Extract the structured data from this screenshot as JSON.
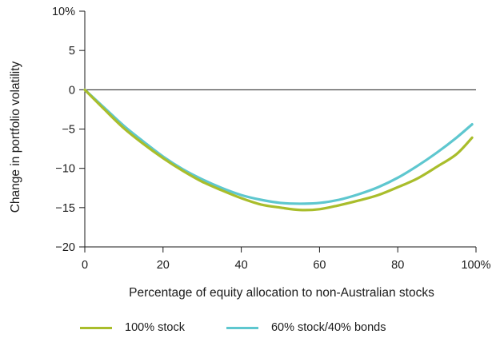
{
  "chart_data": {
    "type": "line",
    "xlabel": "Percentage of equity allocation to non-Australian stocks",
    "ylabel": "Change in portfolio volatility",
    "xlim": [
      0,
      100
    ],
    "ylim": [
      -20,
      10
    ],
    "x_ticks": [
      {
        "value": 0,
        "label": "0"
      },
      {
        "value": 20,
        "label": "20"
      },
      {
        "value": 40,
        "label": "40"
      },
      {
        "value": 60,
        "label": "60"
      },
      {
        "value": 80,
        "label": "80"
      },
      {
        "value": 100,
        "label": "100%"
      }
    ],
    "y_ticks": [
      {
        "value": 10,
        "label": "10%"
      },
      {
        "value": 5,
        "label": "5"
      },
      {
        "value": 0,
        "label": "0"
      },
      {
        "value": -5,
        "label": "−5"
      },
      {
        "value": -10,
        "label": "−10"
      },
      {
        "value": -15,
        "label": "−15"
      },
      {
        "value": -20,
        "label": "−20"
      }
    ],
    "zero_line": true,
    "legend_position": "bottom",
    "series": [
      {
        "name": "100% stock",
        "color": "#a9bd2b",
        "x": [
          0,
          5,
          10,
          15,
          20,
          25,
          30,
          35,
          40,
          45,
          50,
          55,
          60,
          65,
          70,
          75,
          80,
          85,
          90,
          95,
          99
        ],
        "y": [
          0,
          -2.5,
          -4.9,
          -6.9,
          -8.7,
          -10.3,
          -11.7,
          -12.8,
          -13.8,
          -14.6,
          -15.0,
          -15.3,
          -15.2,
          -14.7,
          -14.1,
          -13.4,
          -12.4,
          -11.3,
          -9.8,
          -8.2,
          -6.1
        ]
      },
      {
        "name": "60% stock/40% bonds",
        "color": "#5ec7cf",
        "x": [
          0,
          5,
          10,
          15,
          20,
          25,
          30,
          35,
          40,
          45,
          50,
          55,
          60,
          65,
          70,
          75,
          80,
          85,
          90,
          95,
          99
        ],
        "y": [
          0,
          -2.3,
          -4.6,
          -6.6,
          -8.5,
          -10.1,
          -11.4,
          -12.5,
          -13.4,
          -14.0,
          -14.4,
          -14.5,
          -14.4,
          -14.0,
          -13.3,
          -12.4,
          -11.2,
          -9.7,
          -8.0,
          -6.1,
          -4.4
        ]
      }
    ]
  }
}
